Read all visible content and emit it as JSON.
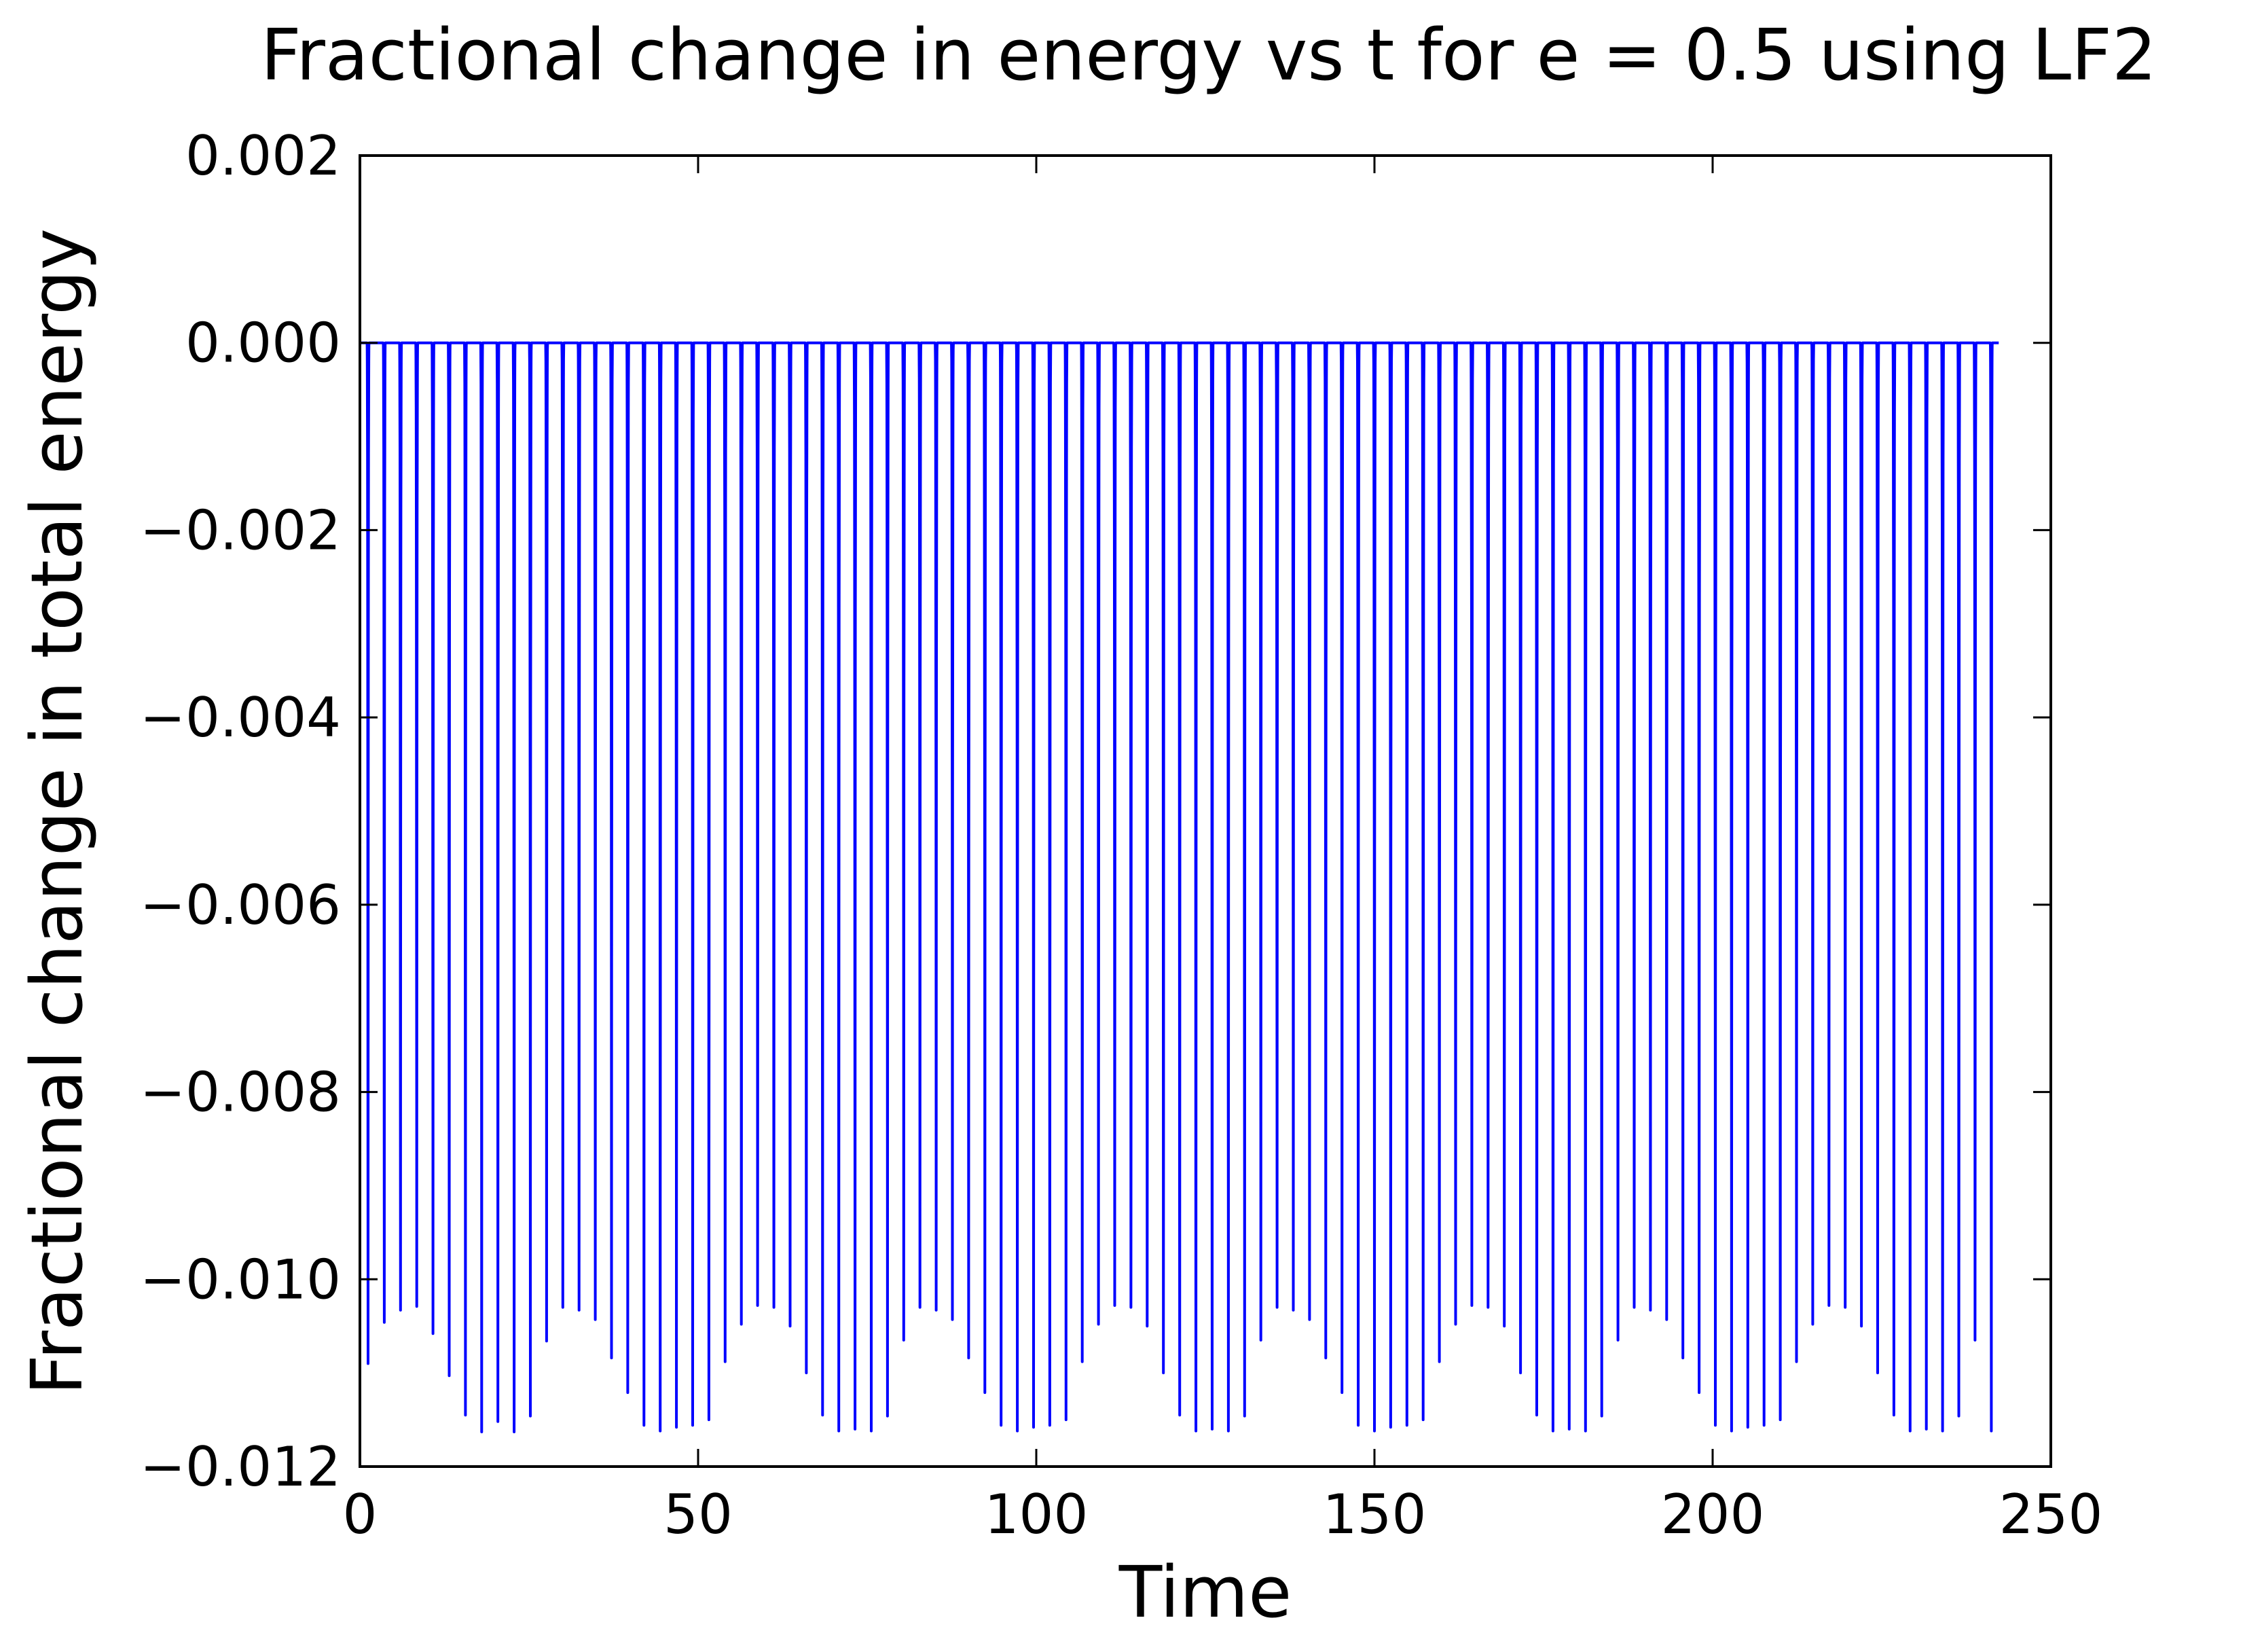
{
  "chart_data": {
    "type": "line",
    "title": "Fractional change in energy vs t for e = 0.5 using LF2",
    "xlabel": "Time",
    "ylabel": "Fractional change in total energy",
    "xlim": [
      0,
      250
    ],
    "ylim": [
      -0.012,
      0.002
    ],
    "xticks": [
      0,
      50,
      100,
      150,
      200,
      250
    ],
    "xtick_labels": [
      "0",
      "50",
      "100",
      "150",
      "200",
      "250"
    ],
    "yticks": [
      0.002,
      0.0,
      -0.002,
      -0.004,
      -0.006,
      -0.008,
      -0.01,
      -0.012
    ],
    "ytick_labels": [
      "0.002",
      "0.000",
      "−0.002",
      "−0.004",
      "−0.006",
      "−0.008",
      "−0.010",
      "−0.012"
    ],
    "grid": false,
    "legend": "none",
    "series": [
      {
        "color": "#0000ff",
        "t_range": [
          0,
          242.3
        ],
        "max_value": 0.0,
        "period": 2.57,
        "dip_times": [
          1.2,
          3.6,
          6.0,
          8.4,
          10.8,
          13.2,
          15.6,
          18.0,
          20.4,
          22.8,
          25.2,
          27.6,
          30.0,
          32.4,
          34.8,
          37.2,
          39.6,
          42.0,
          44.4,
          46.8,
          49.2,
          51.6,
          54.0,
          56.4,
          58.8,
          61.2,
          63.6,
          66.0,
          68.4,
          70.8,
          73.2,
          75.6,
          78.0,
          80.4,
          82.8,
          85.2,
          87.6,
          90.0,
          92.4,
          94.8,
          97.2,
          99.6,
          102.0,
          104.4,
          106.8,
          109.2,
          111.6,
          114.0,
          116.4,
          118.8,
          121.2,
          123.6,
          126.0,
          128.4,
          130.8,
          133.2,
          135.6,
          138.0,
          140.4,
          142.8,
          145.2,
          147.6,
          150.0,
          152.4,
          154.8,
          157.2,
          159.6,
          162.0,
          164.4,
          166.8,
          169.2,
          171.6,
          174.0,
          176.4,
          178.8,
          181.2,
          183.6,
          186.0,
          188.4,
          190.8,
          193.2,
          195.6,
          198.0,
          200.4,
          202.8,
          205.2,
          207.6,
          210.0,
          212.4,
          214.8,
          217.2,
          219.6,
          222.0,
          224.4,
          226.8,
          229.2,
          231.6,
          234.0,
          236.4,
          238.8,
          241.2
        ],
        "dip_minima": [
          -0.0109,
          -0.01046,
          -0.01033,
          -0.01029,
          -0.01058,
          -0.01103,
          -0.01145,
          -0.01163,
          -0.01152,
          -0.01163,
          -0.01146,
          -0.01066,
          -0.0103,
          -0.01033,
          -0.01043,
          -0.01084,
          -0.01121,
          -0.01156,
          -0.01162,
          -0.01158,
          -0.01156,
          -0.0115,
          -0.01088,
          -0.01048,
          -0.01028,
          -0.0103,
          -0.0105,
          -0.011,
          -0.01145,
          -0.01162,
          -0.0116,
          -0.01162,
          -0.01146,
          -0.01065,
          -0.0103,
          -0.01033,
          -0.01043,
          -0.01084,
          -0.01121,
          -0.01156,
          -0.01162,
          -0.01158,
          -0.01156,
          -0.0115,
          -0.01088,
          -0.01048,
          -0.01028,
          -0.0103,
          -0.0105,
          -0.011,
          -0.01145,
          -0.01162,
          -0.0116,
          -0.01162,
          -0.01146,
          -0.01065,
          -0.0103,
          -0.01033,
          -0.01043,
          -0.01084,
          -0.01121,
          -0.01156,
          -0.01162,
          -0.01158,
          -0.01156,
          -0.0115,
          -0.01088,
          -0.01048,
          -0.01028,
          -0.0103,
          -0.0105,
          -0.011,
          -0.01145,
          -0.01162,
          -0.0116,
          -0.01162,
          -0.01146,
          -0.01065,
          -0.0103,
          -0.01033,
          -0.01043,
          -0.01084,
          -0.01121,
          -0.01156,
          -0.01162,
          -0.01158,
          -0.01156,
          -0.0115,
          -0.01088,
          -0.01048,
          -0.01028,
          -0.0103,
          -0.0105,
          -0.011,
          -0.01145,
          -0.01162,
          -0.0116,
          -0.01162,
          -0.01146,
          -0.01065,
          -0.01162
        ]
      }
    ]
  }
}
